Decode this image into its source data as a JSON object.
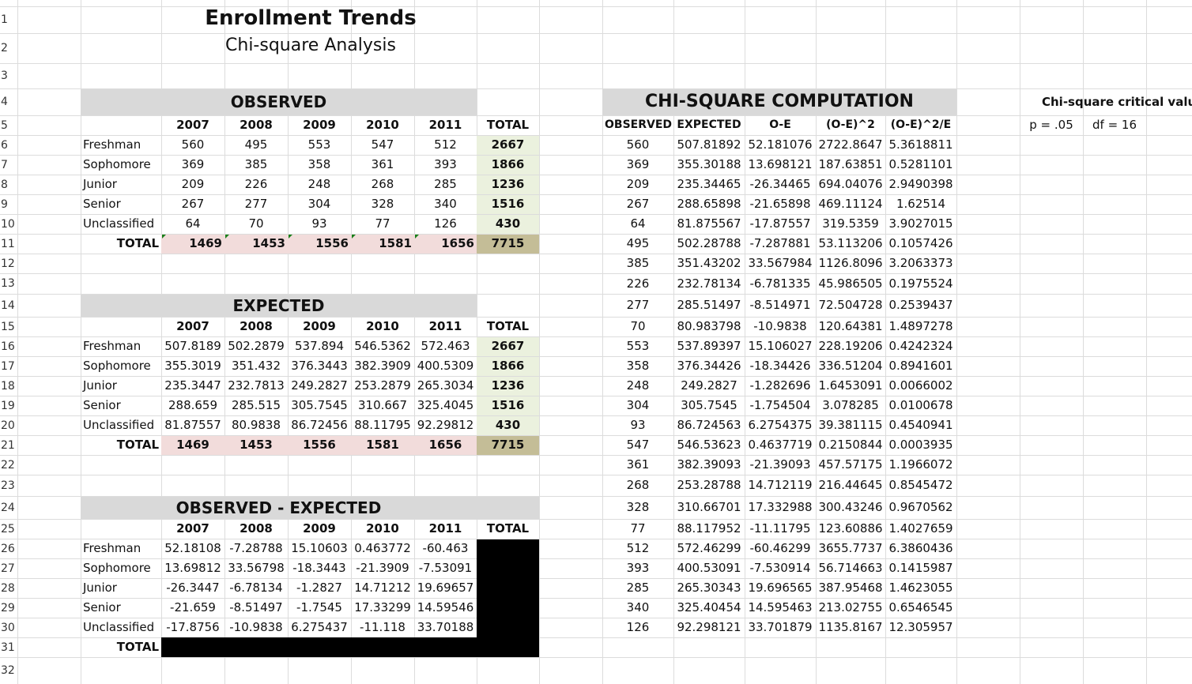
{
  "title": "Enrollment Trends",
  "subtitle": "Chi-square Analysis",
  "row_numbers": [
    "1",
    "2",
    "3",
    "4",
    "5",
    "6",
    "7",
    "8",
    "9",
    "10",
    "11",
    "12",
    "13",
    "14",
    "15",
    "16",
    "17",
    "18",
    "19",
    "20",
    "21",
    "22",
    "23",
    "24",
    "25",
    "26",
    "27",
    "28",
    "29",
    "30",
    "31",
    "32"
  ],
  "observed": {
    "header": "OBSERVED",
    "columns": [
      "2007",
      "2008",
      "2009",
      "2010",
      "2011",
      "TOTAL"
    ],
    "rows": [
      {
        "label": "Freshman",
        "cells": [
          "560",
          "495",
          "553",
          "547",
          "512",
          "2667"
        ]
      },
      {
        "label": "Sophomore",
        "cells": [
          "369",
          "385",
          "358",
          "361",
          "393",
          "1866"
        ]
      },
      {
        "label": "Junior",
        "cells": [
          "209",
          "226",
          "248",
          "268",
          "285",
          "1236"
        ]
      },
      {
        "label": "Senior",
        "cells": [
          "267",
          "277",
          "304",
          "328",
          "340",
          "1516"
        ]
      },
      {
        "label": "Unclassified",
        "cells": [
          "64",
          "70",
          "93",
          "77",
          "126",
          "430"
        ]
      }
    ],
    "total_label": "TOTAL",
    "totals": [
      "1469",
      "1453",
      "1556",
      "1581",
      "1656",
      "7715"
    ]
  },
  "expected": {
    "header": "EXPECTED",
    "columns": [
      "2007",
      "2008",
      "2009",
      "2010",
      "2011",
      "TOTAL"
    ],
    "rows": [
      {
        "label": "Freshman",
        "cells": [
          "507.8189",
          "502.2879",
          "537.894",
          "546.5362",
          "572.463",
          "2667"
        ]
      },
      {
        "label": "Sophomore",
        "cells": [
          "355.3019",
          "351.432",
          "376.3443",
          "382.3909",
          "400.5309",
          "1866"
        ]
      },
      {
        "label": "Junior",
        "cells": [
          "235.3447",
          "232.7813",
          "249.2827",
          "253.2879",
          "265.3034",
          "1236"
        ]
      },
      {
        "label": "Senior",
        "cells": [
          "288.659",
          "285.515",
          "305.7545",
          "310.667",
          "325.4045",
          "1516"
        ]
      },
      {
        "label": "Unclassified",
        "cells": [
          "81.87557",
          "80.9838",
          "86.72456",
          "88.11795",
          "92.29812",
          "430"
        ]
      }
    ],
    "total_label": "TOTAL",
    "totals": [
      "1469",
      "1453",
      "1556",
      "1581",
      "1656",
      "7715"
    ]
  },
  "diff": {
    "header": "OBSERVED - EXPECTED",
    "columns": [
      "2007",
      "2008",
      "2009",
      "2010",
      "2011",
      "TOTAL"
    ],
    "rows": [
      {
        "label": "Freshman",
        "cells": [
          "52.18108",
          "-7.28788",
          "15.10603",
          "0.463772",
          "-60.463"
        ]
      },
      {
        "label": "Sophomore",
        "cells": [
          "13.69812",
          "33.56798",
          "-18.3443",
          "-21.3909",
          "-7.53091"
        ]
      },
      {
        "label": "Junior",
        "cells": [
          "-26.3447",
          "-6.78134",
          "-1.2827",
          "14.71212",
          "19.69657"
        ]
      },
      {
        "label": "Senior",
        "cells": [
          "-21.659",
          "-8.51497",
          "-1.7545",
          "17.33299",
          "14.59546"
        ]
      },
      {
        "label": "Unclassified",
        "cells": [
          "-17.8756",
          "-10.9838",
          "6.275437",
          "-11.118",
          "33.70188"
        ]
      }
    ],
    "total_label": "TOTAL"
  },
  "chi": {
    "header": "CHI-SQUARE COMPUTATION",
    "columns": [
      "OBSERVED",
      "EXPECTED",
      "O-E",
      "(O-E)^2",
      "(O-E)^2/E"
    ],
    "rows": [
      [
        "560",
        "507.81892",
        "52.181076",
        "2722.8647",
        "5.3618811"
      ],
      [
        "369",
        "355.30188",
        "13.698121",
        "187.63851",
        "0.5281101"
      ],
      [
        "209",
        "235.34465",
        "-26.34465",
        "694.04076",
        "2.9490398"
      ],
      [
        "267",
        "288.65898",
        "-21.65898",
        "469.11124",
        "1.62514"
      ],
      [
        "64",
        "81.875567",
        "-17.87557",
        "319.5359",
        "3.9027015"
      ],
      [
        "495",
        "502.28788",
        "-7.287881",
        "53.113206",
        "0.1057426"
      ],
      [
        "385",
        "351.43202",
        "33.567984",
        "1126.8096",
        "3.2063373"
      ],
      [
        "226",
        "232.78134",
        "-6.781335",
        "45.986505",
        "0.1975524"
      ],
      [
        "277",
        "285.51497",
        "-8.514971",
        "72.504728",
        "0.2539437"
      ],
      [
        "70",
        "80.983798",
        "-10.9838",
        "120.64381",
        "1.4897278"
      ],
      [
        "553",
        "537.89397",
        "15.106027",
        "228.19206",
        "0.4242324"
      ],
      [
        "358",
        "376.34426",
        "-18.34426",
        "336.51204",
        "0.8941601"
      ],
      [
        "248",
        "249.2827",
        "-1.282696",
        "1.6453091",
        "0.0066002"
      ],
      [
        "304",
        "305.7545",
        "-1.754504",
        "3.078285",
        "0.0100678"
      ],
      [
        "93",
        "86.724563",
        "6.2754375",
        "39.381115",
        "0.4540941"
      ],
      [
        "547",
        "546.53623",
        "0.4637719",
        "0.2150844",
        "0.0003935"
      ],
      [
        "361",
        "382.39093",
        "-21.39093",
        "457.57175",
        "1.1966072"
      ],
      [
        "268",
        "253.28788",
        "14.712119",
        "216.44645",
        "0.8545472"
      ],
      [
        "328",
        "310.66701",
        "17.332988",
        "300.43246",
        "0.9670562"
      ],
      [
        "77",
        "88.117952",
        "-11.11795",
        "123.60886",
        "1.4027659"
      ],
      [
        "512",
        "572.46299",
        "-60.46299",
        "3655.7737",
        "6.3860436"
      ],
      [
        "393",
        "400.53091",
        "-7.530914",
        "56.714663",
        "0.1415987"
      ],
      [
        "285",
        "265.30343",
        "19.696565",
        "387.95468",
        "1.4623055"
      ],
      [
        "340",
        "325.40454",
        "14.595463",
        "213.02755",
        "0.6546545"
      ],
      [
        "126",
        "92.298121",
        "33.701879",
        "1135.8167",
        "12.305957"
      ]
    ]
  },
  "critical": {
    "title": "Chi-square critical value",
    "p_label": "p = .05",
    "df_label": "df = 16"
  },
  "colors": {
    "header_band": "#d9d9d9",
    "total_col": "#ebf1de",
    "total_row": "#f2dcdb",
    "grand_total": "#c4bd97",
    "black_fill": "#000000",
    "corner_mark": "#1a7f1a"
  }
}
